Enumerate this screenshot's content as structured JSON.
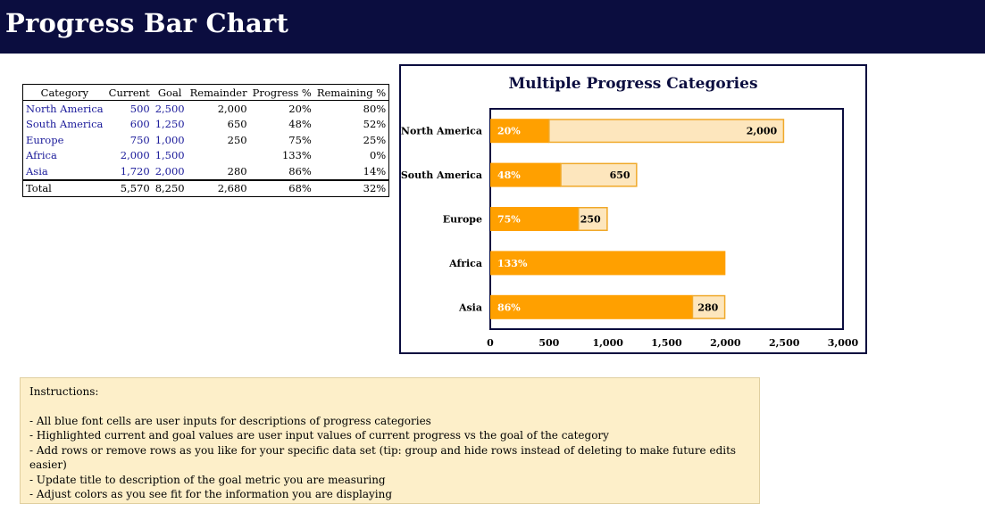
{
  "page": {
    "title": "Progress Bar Chart"
  },
  "table": {
    "headers": [
      "Category",
      "Current",
      "Goal",
      "Remainder",
      "Progress %",
      "Remaining %"
    ],
    "rows": [
      [
        "North America",
        "500",
        "2,500",
        "2,000",
        "20%",
        "80%"
      ],
      [
        "South America",
        "600",
        "1,250",
        "650",
        "48%",
        "52%"
      ],
      [
        "Europe",
        "750",
        "1,000",
        "250",
        "75%",
        "25%"
      ],
      [
        "Africa",
        "2,000",
        "1,500",
        "",
        "133%",
        "0%"
      ],
      [
        "Asia",
        "1,720",
        "2,000",
        "280",
        "86%",
        "14%"
      ]
    ],
    "total": [
      "Total",
      "5,570",
      "8,250",
      "2,680",
      "68%",
      "32%"
    ]
  },
  "chart_data": {
    "type": "bar",
    "orientation": "horizontal",
    "stacked": true,
    "title": "Multiple Progress Categories",
    "categories": [
      "North America",
      "South America",
      "Europe",
      "Africa",
      "Asia"
    ],
    "series": [
      {
        "values": [
          500,
          600,
          750,
          2000,
          1720
        ],
        "labels": [
          "20%",
          "48%",
          "75%",
          "133%",
          "86%"
        ]
      },
      {
        "values": [
          2000,
          650,
          250,
          0,
          280
        ],
        "labels": [
          "2,000",
          "650",
          "250",
          "",
          "280"
        ]
      }
    ],
    "xlim": [
      0,
      3000
    ],
    "xticks": [
      "0",
      "500",
      "1,000",
      "1,500",
      "2,000",
      "2,500",
      "3,000"
    ],
    "colors": {
      "progress": "#ffa000",
      "remainder": "#fde6bd",
      "remainder_border": "#f0a92a",
      "frame": "#0b0d3f"
    },
    "grid": false,
    "legend": "none"
  },
  "instructions": {
    "heading": "Instructions:",
    "items": [
      "- All blue font cells are user inputs for descriptions of progress categories",
      "- Highlighted current and goal values are user input values of current progress vs the goal of the category",
      "- Add rows or remove  rows as you like for your specific data set (tip: group and hide rows instead of deleting to make future edits easier)",
      "- Update title to description of the goal metric you are measuring",
      "- Adjust colors as you see fit for the information you are displaying"
    ]
  }
}
